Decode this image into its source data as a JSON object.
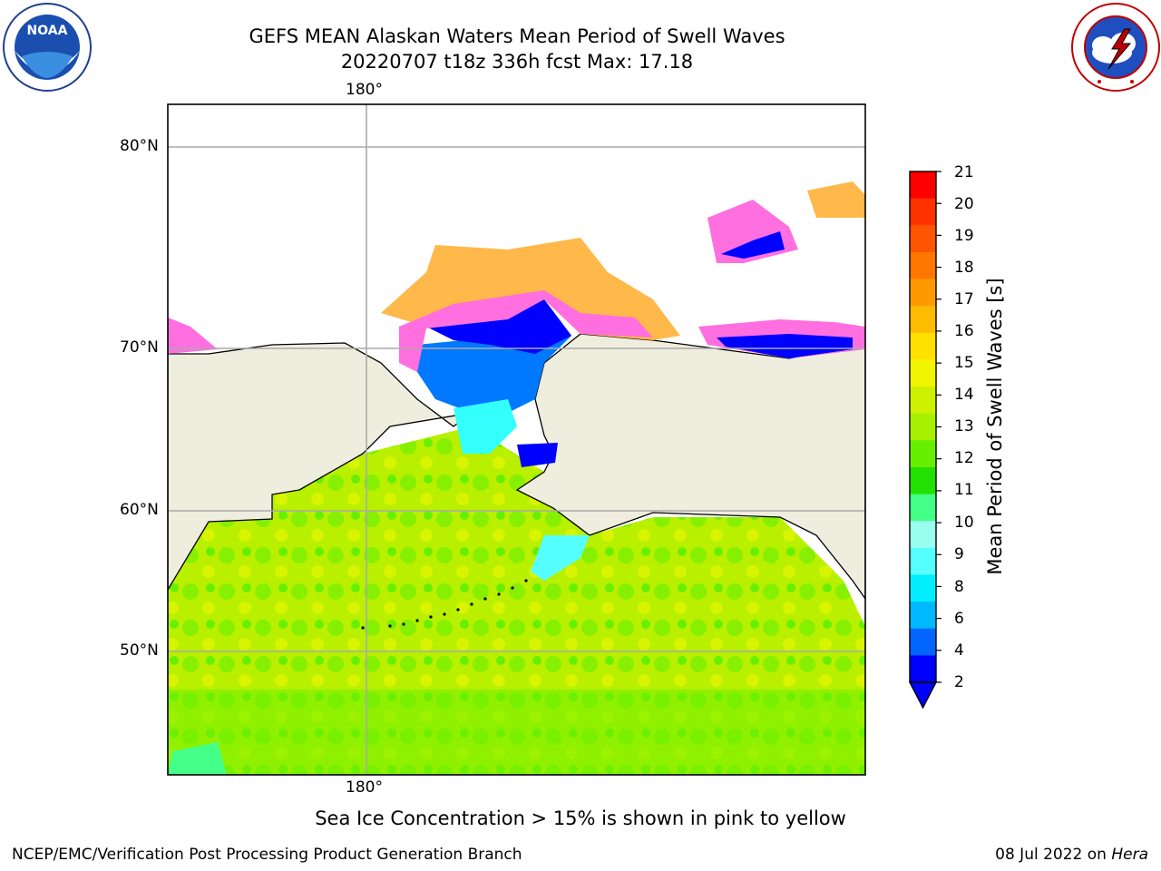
{
  "header": {
    "title_line1": "GEFS MEAN Alaskan Waters Mean Period of Swell Waves",
    "title_line2": "20220707 t18z 336h fcst   Max: 17.18"
  },
  "logos": {
    "left": "NOAA",
    "left_ring_text": "NATIONAL OCEANIC AND ATMOSPHERIC ADMINISTRATION · U.S. DEPARTMENT OF COMMERCE",
    "right_ring_text": "NATIONAL WEATHER SERVICE"
  },
  "map": {
    "lon_label_top": "180°",
    "lon_label_bottom": "180°",
    "lat_labels": [
      "80°N",
      "70°N",
      "60°N",
      "50°N"
    ],
    "colors": {
      "land": "#efedde",
      "ocean_a": "#bff000",
      "ocean_b": "#66f000",
      "ice_orange": "#ffb84a",
      "ice_pink": "#ff6fe0",
      "short_blue": "#0000ff",
      "mid_blue": "#0078ff",
      "cyan": "#33ffff"
    }
  },
  "colorbar": {
    "title": "Mean Period of Swell Waves [s]",
    "labels": [
      "21",
      "20",
      "19",
      "18",
      "17",
      "16",
      "15",
      "14",
      "13",
      "12",
      "11",
      "10",
      "9",
      "8",
      "6",
      "4",
      "2"
    ],
    "colors": [
      "#ff0000",
      "#ff3300",
      "#ff5500",
      "#ff7700",
      "#ff9900",
      "#ffbb00",
      "#ffe000",
      "#f2f500",
      "#ccf000",
      "#a6f000",
      "#66f000",
      "#22e000",
      "#44ff88",
      "#99ffee",
      "#55ffff",
      "#00eeff",
      "#00b8ff",
      "#0066ff",
      "#0000ff"
    ],
    "extend_color": "#0000ff"
  },
  "note": "Sea Ice Concentration > 15% is shown in pink to yellow",
  "footer": {
    "left": "NCEP/EMC/Verification Post Processing Product Generation Branch",
    "right_date": "08 Jul 2022 on ",
    "right_host": "Hera"
  }
}
